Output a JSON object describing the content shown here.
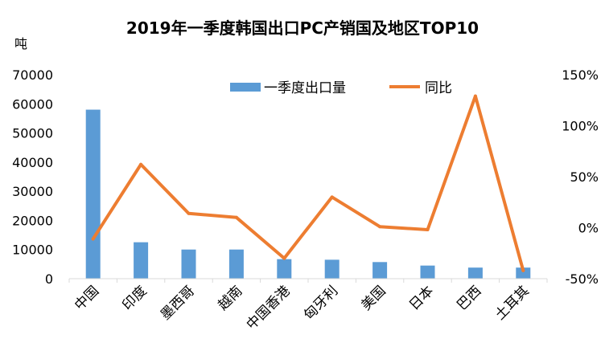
{
  "chart_data": {
    "type": "bar",
    "title": "2019年一季度韩国出口PC产销国及地区TOP10",
    "ylabel": "吨",
    "categories": [
      "中国",
      "印度",
      "墨西哥",
      "越南",
      "中国香港",
      "匈牙利",
      "美国",
      "日本",
      "巴西",
      "土耳其"
    ],
    "series": [
      {
        "name": "一季度出口量",
        "type": "bar",
        "axis": "left",
        "color": "#5b9bd5",
        "values": [
          58000,
          12500,
          10000,
          10000,
          6700,
          6500,
          5700,
          4500,
          3800,
          3800
        ]
      },
      {
        "name": "同比",
        "type": "line",
        "axis": "right",
        "color": "#ed7d31",
        "values": [
          -11,
          62,
          14,
          10,
          -30,
          30,
          1,
          -2,
          129,
          -42
        ]
      }
    ],
    "ylim": [
      0,
      70000
    ],
    "yticks": [
      "0",
      "10000",
      "20000",
      "30000",
      "40000",
      "50000",
      "60000",
      "70000"
    ],
    "y2lim": [
      -50,
      150
    ],
    "y2ticks": [
      "-50%",
      "0%",
      "50%",
      "100%",
      "150%"
    ],
    "legend_position": "top-center",
    "grid": false
  }
}
